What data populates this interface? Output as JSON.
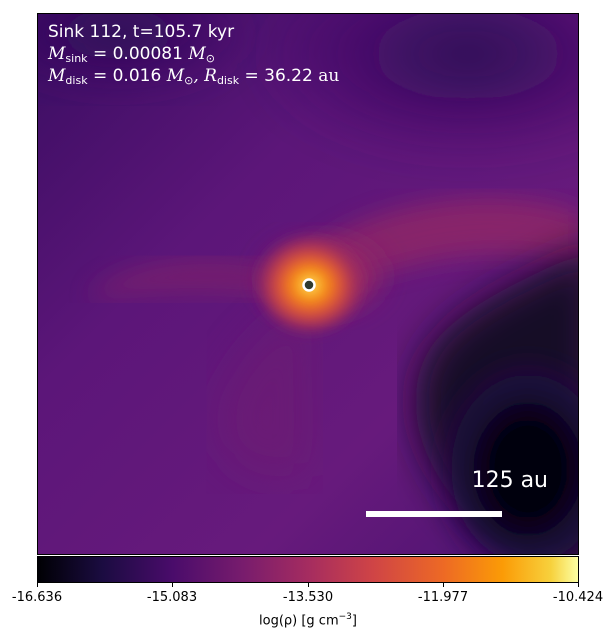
{
  "annotation": {
    "line1": "Sink 112, t=105.7 kyr",
    "sink_mass_symbol": "M",
    "sink_mass_sub": "sink",
    "sink_mass_value": " = 0.00081 ",
    "sink_mass_unit": "M",
    "sink_mass_unit_sub": "⊙",
    "disk_mass_symbol": "M",
    "disk_mass_sub": "disk",
    "disk_mass_value": " = 0.016 ",
    "disk_mass_unit": "M",
    "disk_mass_unit_sub": "⊙",
    "disk_radius_symbol": ", R",
    "disk_radius_sub": "disk",
    "disk_radius_value": " = 36.22 ",
    "disk_radius_unit": "au"
  },
  "scale_bar": {
    "label": "125 au",
    "length_au": 125
  },
  "colorbar": {
    "colormap": "inferno",
    "ticks": [
      "-16.636",
      "-15.083",
      "-13.530",
      "-11.977",
      "-10.424"
    ],
    "label_prefix": "log(ρ) [g cm",
    "label_exp": "−3",
    "label_suffix": "]"
  },
  "colors": {
    "sink_marker_edge": "#ffffff",
    "sink_marker_face": "#2f3a2f",
    "background": "#581476"
  }
}
